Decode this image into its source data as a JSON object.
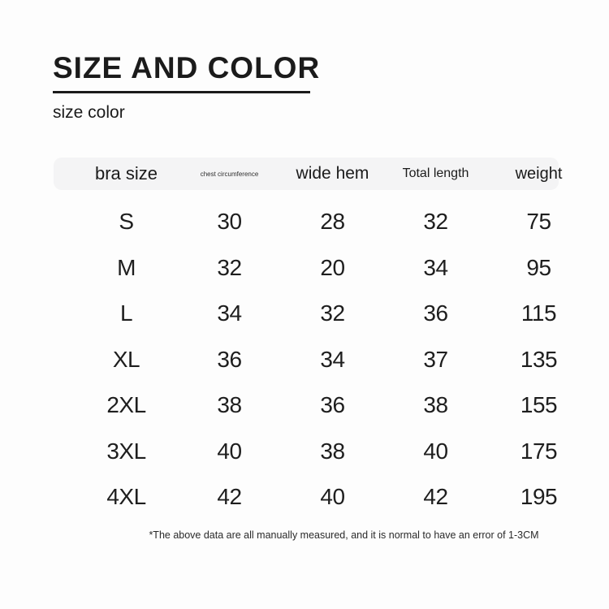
{
  "header": {
    "title": "SIZE AND COLOR",
    "subtitle": "size color"
  },
  "chart_data": {
    "type": "table",
    "title": "SIZE AND COLOR",
    "columns": [
      "bra size",
      "chest circumference",
      "wide hem",
      "Total length",
      "weight"
    ],
    "rows": [
      [
        "S",
        30,
        28,
        32,
        75
      ],
      [
        "M",
        32,
        20,
        34,
        95
      ],
      [
        "L",
        34,
        32,
        36,
        115
      ],
      [
        "XL",
        36,
        34,
        37,
        135
      ],
      [
        "2XL",
        38,
        36,
        38,
        155
      ],
      [
        "3XL",
        40,
        38,
        40,
        175
      ],
      [
        "4XL",
        42,
        40,
        42,
        195
      ]
    ],
    "footnote": "*The above data are all manually measured, and it is normal to have an error of 1-3CM"
  },
  "colors": {
    "background": "#fdfdfd",
    "header_row_bg": "#f4f4f5",
    "text": "#1b1b1b"
  }
}
